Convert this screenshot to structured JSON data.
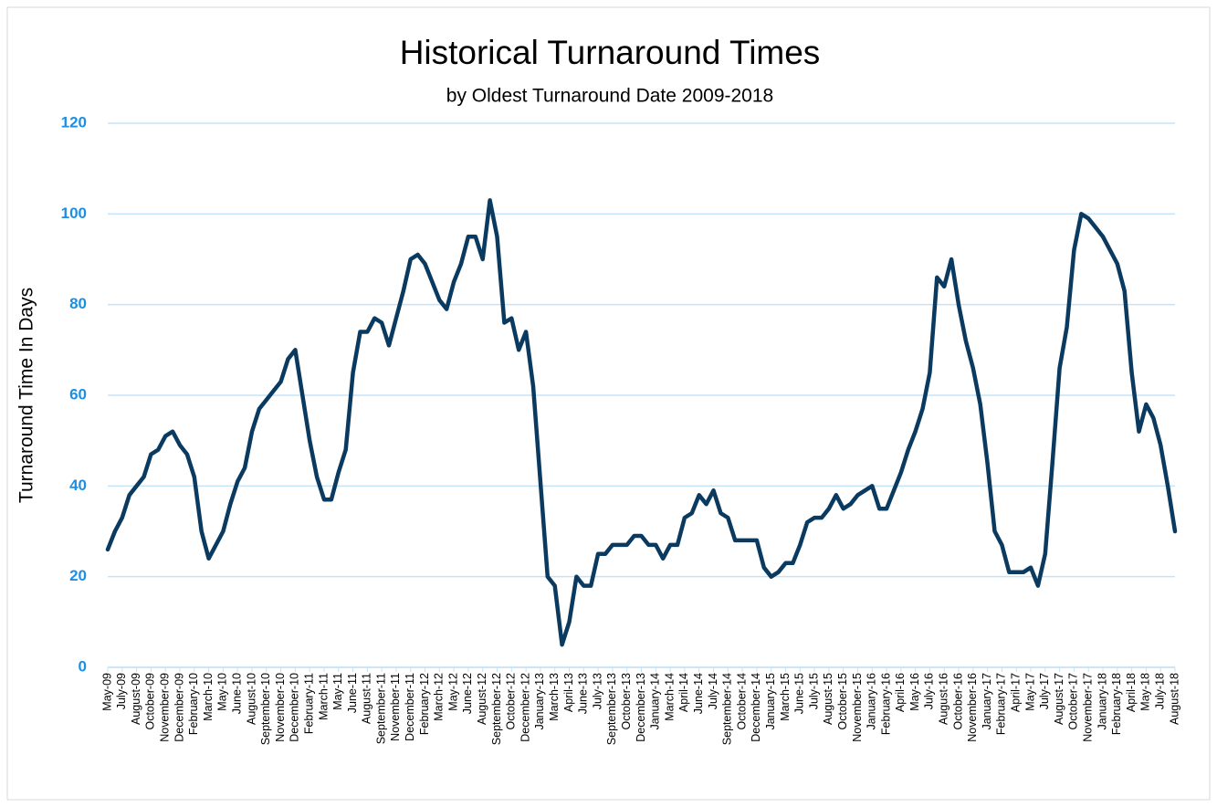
{
  "chart_data": {
    "type": "line",
    "title": "Historical Turnaround Times",
    "subtitle": "by Oldest Turnaround Date 2009-2018",
    "y_label": "Turnaround Time In Days",
    "categories": [
      "May-09",
      null,
      "July-09",
      null,
      "August-09",
      null,
      "October-09",
      null,
      "November-09",
      null,
      "December-09",
      null,
      "February-10",
      null,
      "March-10",
      null,
      "May-10",
      null,
      "June-10",
      null,
      "August-10",
      null,
      "September-10",
      null,
      "November-10",
      null,
      "December-10",
      null,
      "February-11",
      null,
      "March-11",
      null,
      "May-11",
      null,
      "June-11",
      null,
      "August-11",
      null,
      "September-11",
      null,
      "November-11",
      null,
      "December-11",
      null,
      "February-12",
      null,
      "March-12",
      null,
      "May-12",
      null,
      "June-12",
      null,
      "August-12",
      null,
      "September-12",
      null,
      "October-12",
      null,
      "December-12",
      null,
      "January-13",
      null,
      "March-13",
      null,
      "April-13",
      null,
      "June-13",
      null,
      "July-13",
      null,
      "September-13",
      null,
      "October-13",
      null,
      "December-13",
      null,
      "January-14",
      null,
      "March-14",
      null,
      "April-14",
      null,
      "June-14",
      null,
      "July-14",
      null,
      "September-14",
      null,
      "October-14",
      null,
      "December-14",
      null,
      "January-15",
      null,
      "March-15",
      null,
      "June-15",
      null,
      "July-15",
      null,
      "August-15",
      null,
      "October-15",
      null,
      "November-15",
      null,
      "January-16",
      null,
      "February-16",
      null,
      "April-16",
      null,
      "May-16",
      null,
      "July-16",
      null,
      "August-16",
      null,
      "October-16",
      null,
      "November-16",
      null,
      "January-17",
      null,
      "February-17",
      null,
      "April-17",
      null,
      "May-17",
      null,
      "July-17",
      null,
      "August-17",
      null,
      "October-17",
      null,
      "November-17",
      null,
      "January-18",
      null,
      "February-18",
      null,
      "April-18",
      null,
      "May-18",
      null,
      "July-18",
      null,
      "August-18"
    ],
    "series": [
      {
        "name": "Turnaround Time",
        "color": "#0b3a60",
        "values": [
          26,
          30,
          33,
          38,
          40,
          42,
          47,
          48,
          51,
          52,
          49,
          47,
          42,
          30,
          24,
          27,
          30,
          36,
          41,
          44,
          52,
          57,
          59,
          61,
          63,
          68,
          70,
          60,
          50,
          42,
          37,
          37,
          43,
          48,
          65,
          74,
          74,
          77,
          76,
          71,
          77,
          83,
          90,
          91,
          89,
          85,
          81,
          79,
          85,
          89,
          95,
          95,
          90,
          103,
          95,
          76,
          77,
          70,
          74,
          62,
          41,
          20,
          18,
          5,
          10,
          20,
          18,
          18,
          25,
          25,
          27,
          27,
          27,
          29,
          29,
          27,
          27,
          24,
          27,
          27,
          33,
          34,
          38,
          36,
          39,
          34,
          33,
          28,
          28,
          28,
          28,
          22,
          20,
          21,
          23,
          23,
          27,
          32,
          33,
          33,
          35,
          38,
          35,
          36,
          38,
          39,
          40,
          35,
          35,
          39,
          43,
          48,
          52,
          57,
          65,
          86,
          84,
          90,
          80,
          72,
          66,
          58,
          45,
          30,
          27,
          21,
          21,
          21,
          22,
          18,
          25,
          45,
          66,
          75,
          92,
          100,
          99,
          97,
          95,
          92,
          89,
          83,
          65,
          52,
          58,
          55,
          49,
          40,
          30
        ]
      }
    ],
    "ylim": [
      0,
      120
    ],
    "yticks": [
      0,
      20,
      40,
      60,
      80,
      100,
      120
    ],
    "grid": true
  }
}
